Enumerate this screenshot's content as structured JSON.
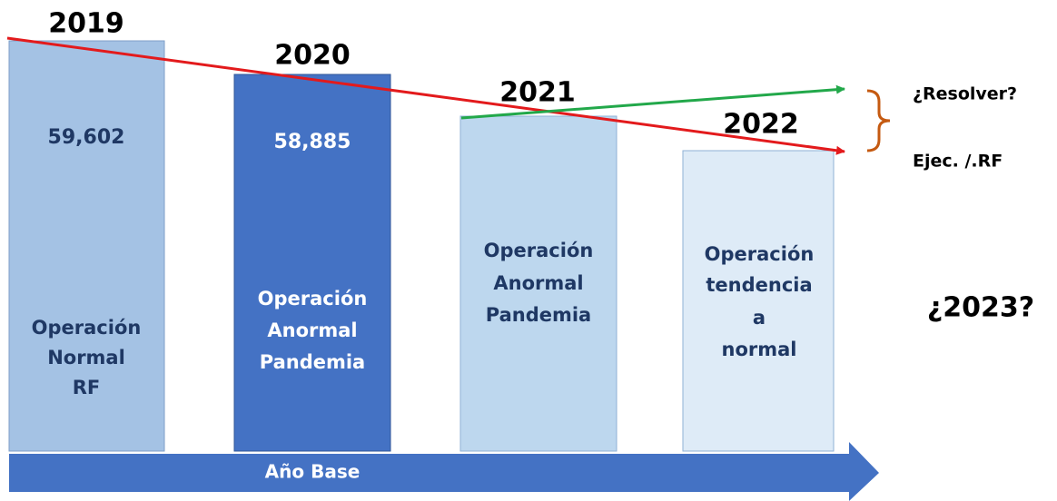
{
  "columns": [
    {
      "year": "2019",
      "value": "59,602",
      "label": [
        "Operación",
        "Normal",
        "RF"
      ]
    },
    {
      "year": "2020",
      "value": "58,885",
      "label": [
        "Operación",
        "Anormal",
        "Pandemia"
      ]
    },
    {
      "year": "2021",
      "label": [
        "Operación",
        "Anormal",
        "Pandemia"
      ]
    },
    {
      "year": "2022",
      "label": [
        "Operación",
        "tendencia",
        "a",
        "normal"
      ]
    }
  ],
  "notes": [
    "¿Resolver?",
    "Ejec. /.RF"
  ],
  "question": "¿2023?",
  "base_label": "Año Base"
}
